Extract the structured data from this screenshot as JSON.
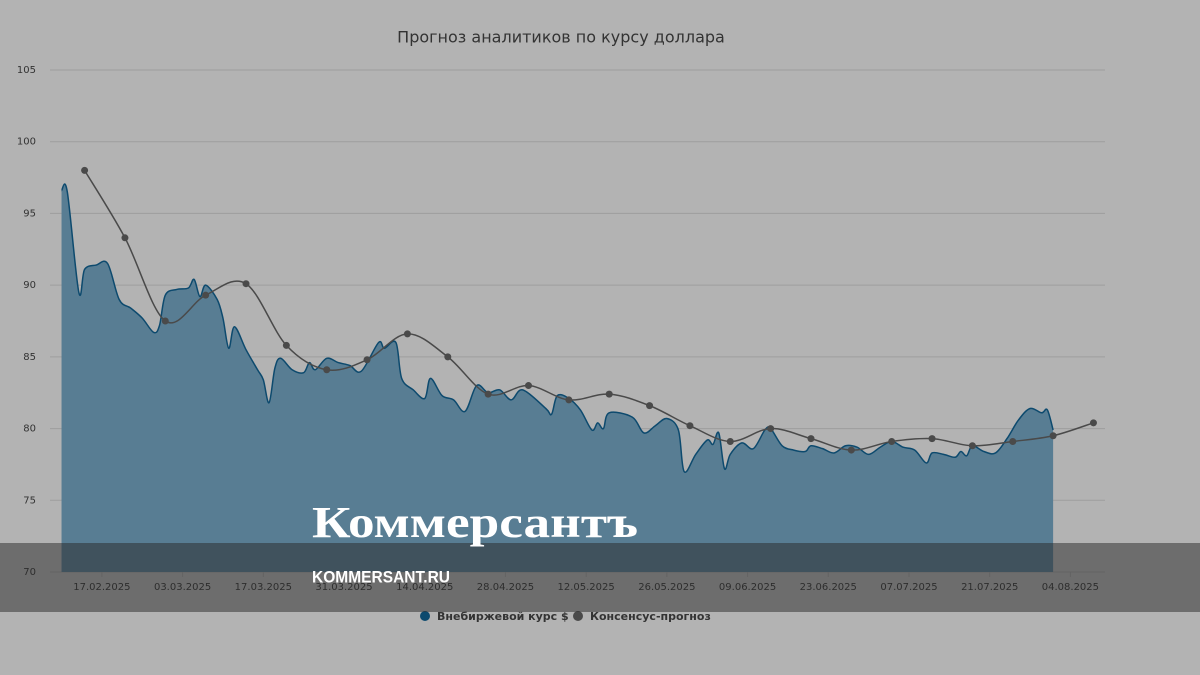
{
  "chart_data": {
    "type": "area-line",
    "title": "Прогноз аналитиков по курсу доллара",
    "series": [
      {
        "name": "Внебиржевой курс $",
        "type": "area",
        "color": "#0d4a6e",
        "fill": "#587d93",
        "x": [
          "10.02.2025",
          "11.02.2025",
          "13.02.2025",
          "14.02.2025",
          "16.02.2025",
          "18.02.2025",
          "20.02.2025",
          "22.02.2025",
          "24.02.2025",
          "26.02.2025",
          "27.02.2025",
          "28.02.2025",
          "02.03.2025",
          "04.03.2025",
          "05.03.2025",
          "06.03.2025",
          "07.03.2025",
          "09.03.2025",
          "10.03.2025",
          "11.03.2025",
          "12.03.2025",
          "14.03.2025",
          "16.03.2025",
          "17.03.2025",
          "18.03.2025",
          "19.03.2025",
          "20.03.2025",
          "22.03.2025",
          "24.03.2025",
          "25.03.2025",
          "26.03.2025",
          "28.03.2025",
          "30.03.2025",
          "01.04.2025",
          "03.04.2025",
          "06.04.2025",
          "07.04.2025",
          "09.04.2025",
          "10.04.2025",
          "12.04.2025",
          "14.04.2025",
          "15.04.2025",
          "17.04.2025",
          "19.04.2025",
          "21.04.2025",
          "23.04.2025",
          "25.04.2025",
          "27.04.2025",
          "29.04.2025",
          "01.05.2025",
          "05.05.2025",
          "06.05.2025",
          "07.05.2025",
          "09.05.2025",
          "11.05.2025",
          "13.05.2025",
          "14.05.2025",
          "15.05.2025",
          "16.05.2025",
          "20.05.2025",
          "22.05.2025",
          "24.05.2025",
          "26.05.2025",
          "28.05.2025",
          "29.05.2025",
          "31.05.2025",
          "02.06.2025",
          "03.06.2025",
          "04.06.2025",
          "05.06.2025",
          "06.06.2025",
          "08.06.2025",
          "10.06.2025",
          "12.06.2025",
          "13.06.2025",
          "15.06.2025",
          "17.06.2025",
          "19.06.2025",
          "20.06.2025",
          "22.06.2025",
          "24.06.2025",
          "26.06.2025",
          "28.06.2025",
          "30.06.2025",
          "02.07.2025",
          "04.07.2025",
          "06.07.2025",
          "08.07.2025",
          "10.07.2025",
          "11.07.2025",
          "13.07.2025",
          "15.07.2025",
          "16.07.2025",
          "17.07.2025",
          "18.07.2025",
          "20.07.2025",
          "22.07.2025",
          "24.07.2025",
          "26.07.2025",
          "28.07.2025",
          "30.07.2025",
          "31.07.2025",
          "01.08.2025"
        ],
        "values": [
          96.6,
          96.5,
          89.5,
          91.1,
          91.4,
          91.5,
          89.0,
          88.4,
          87.7,
          86.7,
          87.2,
          89.3,
          89.7,
          89.8,
          90.4,
          89.2,
          90.0,
          89.0,
          87.7,
          85.6,
          87.1,
          85.5,
          84.1,
          83.4,
          81.8,
          84.2,
          84.9,
          84.1,
          83.9,
          84.6,
          84.1,
          84.9,
          84.6,
          84.4,
          84.0,
          86.0,
          85.6,
          86.0,
          83.5,
          82.7,
          82.1,
          83.5,
          82.3,
          82.0,
          81.2,
          83.0,
          82.5,
          82.7,
          82.0,
          82.7,
          81.4,
          81.0,
          82.3,
          82.1,
          81.3,
          79.9,
          80.4,
          80.0,
          81.1,
          80.8,
          79.7,
          80.2,
          80.7,
          79.9,
          77.0,
          78.2,
          79.2,
          78.9,
          79.7,
          77.2,
          78.2,
          79.0,
          78.6,
          79.9,
          80.0,
          78.8,
          78.5,
          78.4,
          78.8,
          78.6,
          78.3,
          78.8,
          78.7,
          78.2,
          78.7,
          79.1,
          78.7,
          78.5,
          77.6,
          78.3,
          78.2,
          78.0,
          78.4,
          78.1,
          78.8,
          78.4,
          78.3,
          79.3,
          80.6,
          81.4,
          81.1,
          81.3,
          79.9
        ]
      },
      {
        "name": "Консенсус-прогноз",
        "type": "line",
        "color": "#4a4a4a",
        "x": [
          "14.02.2025",
          "21.02.2025",
          "28.02.2025",
          "07.03.2025",
          "14.03.2025",
          "21.03.2025",
          "28.03.2025",
          "04.04.2025",
          "11.04.2025",
          "18.04.2025",
          "25.04.2025",
          "02.05.2025",
          "09.05.2025",
          "16.05.2025",
          "23.05.2025",
          "30.05.2025",
          "06.06.2025",
          "13.06.2025",
          "20.06.2025",
          "27.06.2025",
          "04.07.2025",
          "11.07.2025",
          "18.07.2025",
          "25.07.2025",
          "01.08.2025",
          "08.08.2025"
        ],
        "values": [
          98.0,
          93.3,
          87.5,
          89.3,
          90.1,
          85.8,
          84.1,
          84.8,
          86.6,
          85.0,
          82.4,
          83.0,
          82.0,
          82.4,
          81.6,
          80.2,
          79.1,
          80.0,
          79.3,
          78.5,
          79.1,
          79.3,
          78.8,
          79.1,
          79.5,
          80.4
        ]
      }
    ],
    "xlim": [
      "08.02.2025",
      "10.08.2025"
    ],
    "xticks": [
      "17.02.2025",
      "03.03.2025",
      "17.03.2025",
      "31.03.2025",
      "14.04.2025",
      "28.04.2025",
      "12.05.2025",
      "26.05.2025",
      "09.06.2025",
      "23.06.2025",
      "07.07.2025",
      "21.07.2025",
      "04.08.2025"
    ],
    "ylim": [
      70,
      105
    ],
    "yticks": [
      70,
      75,
      80,
      85,
      90,
      95,
      100,
      105
    ],
    "grid": true,
    "legend": "bottom"
  },
  "watermark": {
    "logo": "Коммерсантъ",
    "site": "KOMMERSANT.RU"
  }
}
